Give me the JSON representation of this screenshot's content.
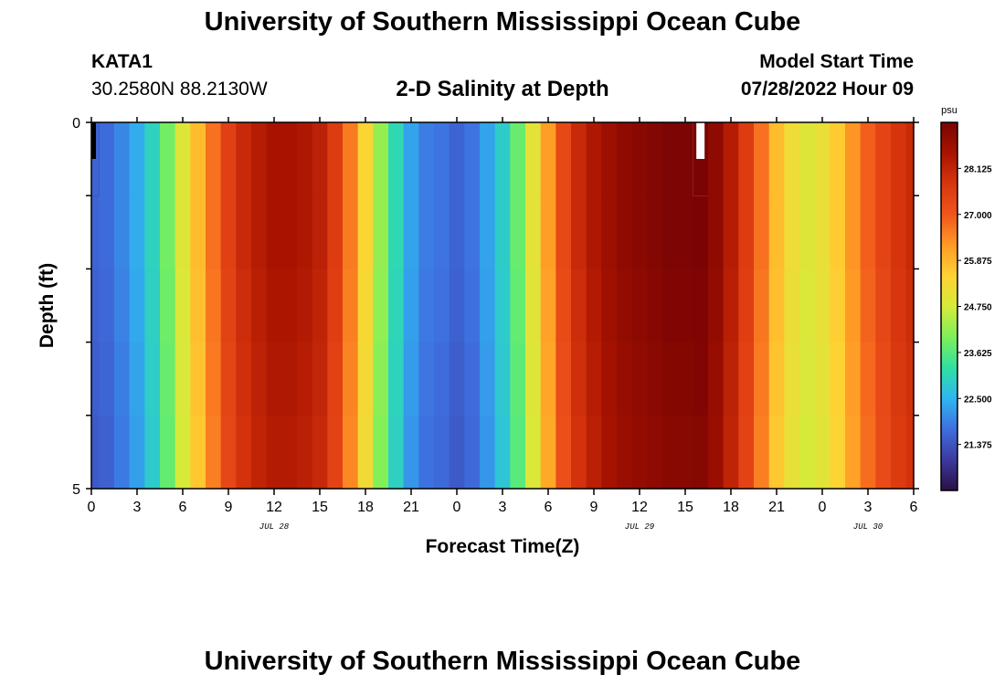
{
  "header": {
    "title": "University of Southern Mississippi Ocean Cube",
    "station_id": "KATA1",
    "coords": "30.2580N  88.2130W",
    "plot_title": "2-D Salinity at Depth",
    "start_label": "Model Start Time",
    "start_value": "07/28/2022 Hour 09"
  },
  "footer": {
    "title": "University of Southern Mississippi Ocean Cube"
  },
  "colorbar": {
    "unit": "psu",
    "ticks": [
      "28.125",
      "27.000",
      "25.875",
      "24.750",
      "23.625",
      "22.500",
      "21.375"
    ],
    "min": 20.25,
    "max": 29.25,
    "colors": [
      "#2a0f45",
      "#3b3a9e",
      "#3e6fe0",
      "#2fb6f0",
      "#2fe0a3",
      "#7ef05a",
      "#d6ea3a",
      "#ffd233",
      "#ff9a25",
      "#f1551c",
      "#d8360e",
      "#a81300",
      "#7a0403"
    ]
  },
  "chart_data": {
    "type": "heatmap",
    "title": "2-D Salinity at Depth",
    "xlabel": "Forecast Time(Z)",
    "ylabel": "Depth (ft)",
    "x_unit": "hours since 07/28/2022 00Z",
    "x_tick_labels": [
      "0",
      "3",
      "6",
      "9",
      "12",
      "15",
      "18",
      "21",
      "0",
      "3",
      "6",
      "9",
      "12",
      "15",
      "18",
      "21",
      "0",
      "3",
      "6"
    ],
    "date_labels": [
      {
        "label": "JUL 28",
        "hour": 12
      },
      {
        "label": "JUL 29",
        "hour": 36
      },
      {
        "label": "JUL 30",
        "hour": 51
      }
    ],
    "xlim": [
      0,
      54
    ],
    "ylim": [
      0,
      5
    ],
    "y_tick_labels": [
      "0",
      "5"
    ],
    "depth_levels": 5,
    "missing_hours": [
      0,
      40
    ],
    "hourly_salinity_psu": [
      21.6,
      21.7,
      22.0,
      22.4,
      23.0,
      23.9,
      24.9,
      25.8,
      26.7,
      27.5,
      28.0,
      28.3,
      28.5,
      28.5,
      28.4,
      28.2,
      27.6,
      26.6,
      25.4,
      24.2,
      23.1,
      22.3,
      21.9,
      21.8,
      21.6,
      21.8,
      22.3,
      22.9,
      23.8,
      25.0,
      26.2,
      27.3,
      28.0,
      28.4,
      28.7,
      28.9,
      29.0,
      29.1,
      29.2,
      29.2,
      29.25,
      28.9,
      28.3,
      27.6,
      26.7,
      25.8,
      25.2,
      24.9,
      25.1,
      25.6,
      26.3,
      26.9,
      27.4,
      27.8,
      28.0
    ]
  }
}
